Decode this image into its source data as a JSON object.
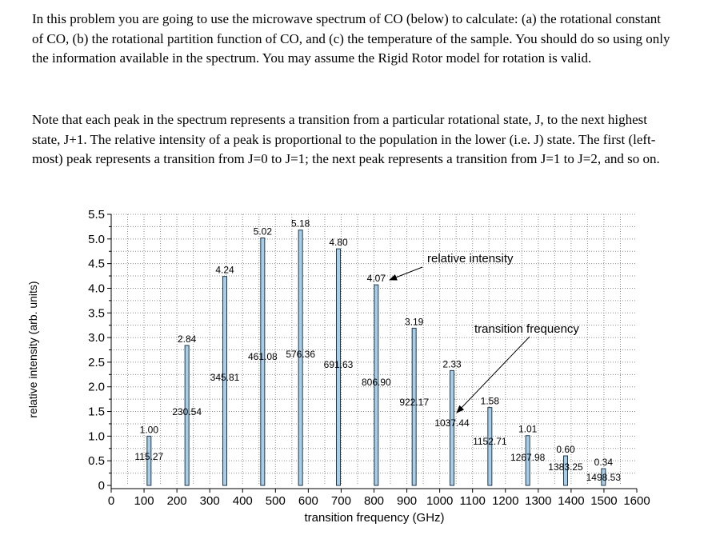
{
  "intro": {
    "paragraph1": "In this problem you are going to use the microwave spectrum of CO (below) to calculate: (a) the rotational constant of CO, (b) the rotational partition function of CO, and (c) the temperature of the sample.  You should do so using only the information available in the spectrum.  You may assume the Rigid Rotor model for rotation is valid.",
    "paragraph2": "Note that each peak in the spectrum represents a transition from a particular rotational state, J, to the next highest state, J+1.  The relative intensity of a peak is proportional to the population in the lower (i.e. J) state.  The first (left-most) peak represents a transition from J=0 to J=1; the next peak represents a transition from J=1 to J=2, and so on."
  },
  "chart_data": {
    "type": "bar",
    "title": "",
    "xlabel": "transition frequency (GHz)",
    "ylabel": "relative intensity (arb. units)",
    "xlim": [
      0,
      1600
    ],
    "ylim": [
      0,
      5.5
    ],
    "xticks": [
      "0",
      "100",
      "200",
      "300",
      "400",
      "500",
      "600",
      "700",
      "800",
      "900",
      "1000",
      "1100",
      "1200",
      "1300",
      "1400",
      "1500",
      "1600"
    ],
    "yticks": [
      "0",
      "0.5",
      "1.0",
      "1.5",
      "2.0",
      "2.5",
      "3.0",
      "3.5",
      "4.0",
      "4.5",
      "5.0",
      "5.5"
    ],
    "grid": true,
    "x_labels": [
      "115.27",
      "230.54",
      "345.81",
      "461.08",
      "576.36",
      "691.63",
      "806.90",
      "922.17",
      "1037.44",
      "1152.71",
      "1267.98",
      "1383.25",
      "1498.53"
    ],
    "value_labels": [
      "1.00",
      "2.84",
      "4.24",
      "5.02",
      "5.18",
      "4.80",
      "4.07",
      "3.19",
      "2.33",
      "1.58",
      "1.01",
      "0.60",
      "0.34"
    ],
    "x": [
      115.27,
      230.54,
      345.81,
      461.08,
      576.36,
      691.63,
      806.9,
      922.17,
      1037.44,
      1152.71,
      1267.98,
      1383.25,
      1498.53
    ],
    "values": [
      1.0,
      2.84,
      4.24,
      5.02,
      5.18,
      4.8,
      4.07,
      3.19,
      2.33,
      1.58,
      1.01,
      0.6,
      0.34
    ],
    "annotations": [
      {
        "text": "relative intensity",
        "points_to_index": 6
      },
      {
        "text": "transition frequency",
        "points_to_index": 8
      }
    ]
  },
  "colors": {
    "bar_fill": "#a9cde6",
    "bar_stroke": "#1f3a4d",
    "grid": "#8c8c8c"
  }
}
